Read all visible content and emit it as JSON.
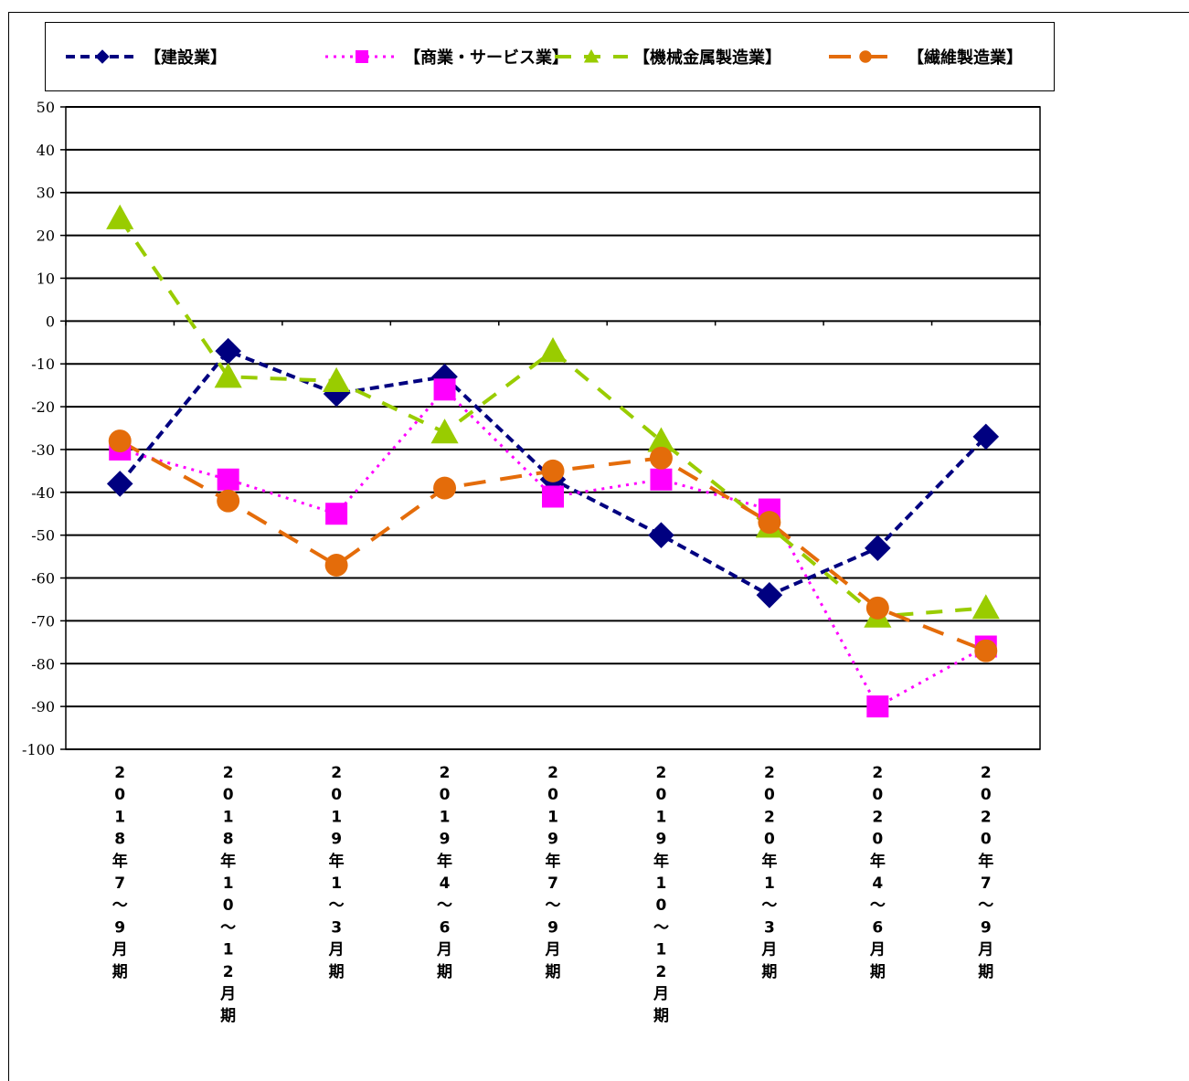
{
  "chart_data": {
    "type": "line",
    "categories": [
      "2018年7～9月期",
      "2018年10～12月期",
      "2019年1～3月期",
      "2019年4～6月期",
      "2019年7～9月期",
      "2019年10～12月期",
      "2020年1～3月期",
      "2020年4～6月期",
      "2020年7～9月期"
    ],
    "ylim": [
      -100,
      50
    ],
    "yticks": [
      50,
      40,
      30,
      20,
      10,
      0,
      -10,
      -20,
      -30,
      -40,
      -50,
      -60,
      -70,
      -80,
      -90,
      -100
    ],
    "grid": true,
    "legend_position": "top",
    "series": [
      {
        "name": "【建設業】",
        "color": "#000080",
        "marker": "diamond",
        "dash": "dashed",
        "values": [
          -38,
          -7,
          -17,
          -13,
          -37,
          -50,
          -64,
          -53,
          -27
        ]
      },
      {
        "name": "【商業・サービス業】",
        "color": "#ff00ff",
        "marker": "square",
        "dash": "dotted",
        "values": [
          -30,
          -37,
          -45,
          -16,
          -41,
          -37,
          -44,
          -90,
          -76
        ]
      },
      {
        "name": "【機械金属製造業】",
        "color": "#99cc00",
        "marker": "triangle",
        "dash": "long-dash",
        "values": [
          24,
          -13,
          -14,
          -26,
          -7,
          -28,
          -48,
          -69,
          -67
        ]
      },
      {
        "name": "【繊維製造業】",
        "color": "#e46c0a",
        "marker": "circle",
        "dash": "dash",
        "values": [
          -28,
          -42,
          -57,
          -39,
          -35,
          -32,
          -47,
          -67,
          -77
        ]
      }
    ]
  }
}
